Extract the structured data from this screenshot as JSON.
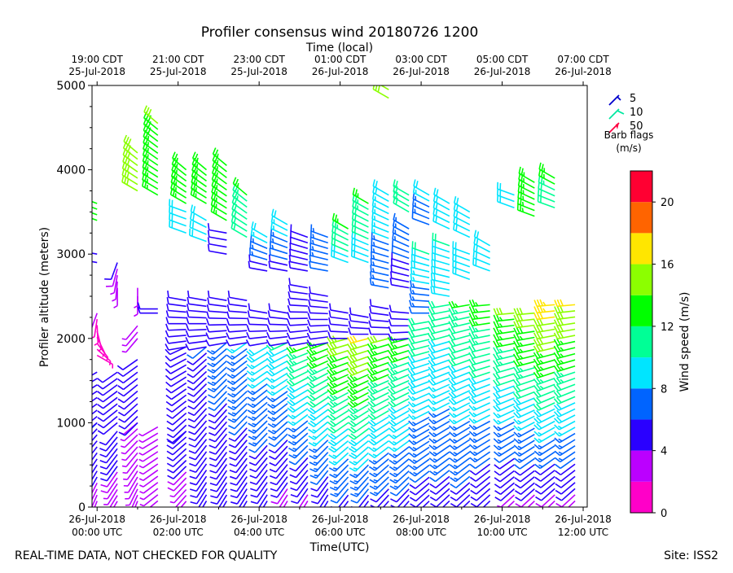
{
  "chart_data": {
    "type": "wind-barb",
    "title": "Profiler consensus wind 20180726 1200",
    "top_axis_title": "Time (local)",
    "xlabel": "Time(UTC)",
    "ylabel": "Profiler altitude (meters)",
    "ylim": [
      0,
      5000
    ],
    "y_ticks": [
      0,
      1000,
      2000,
      3000,
      4000,
      5000
    ],
    "xlim_hours": [
      -0.125,
      12.1
    ],
    "bottom_ticks": [
      {
        "hour": 0,
        "line1": "26-Jul-2018",
        "line2": "00:00 UTC"
      },
      {
        "hour": 2,
        "line1": "26-Jul-2018",
        "line2": "02:00 UTC"
      },
      {
        "hour": 4,
        "line1": "26-Jul-2018",
        "line2": "04:00 UTC"
      },
      {
        "hour": 6,
        "line1": "26-Jul-2018",
        "line2": "06:00 UTC"
      },
      {
        "hour": 8,
        "line1": "26-Jul-2018",
        "line2": "08:00 UTC"
      },
      {
        "hour": 10,
        "line1": "26-Jul-2018",
        "line2": "10:00 UTC"
      },
      {
        "hour": 12,
        "line1": "26-Jul-2018",
        "line2": "12:00 UTC"
      }
    ],
    "top_ticks": [
      {
        "hour": 0,
        "line1": "19:00 CDT",
        "line2": "25-Jul-2018"
      },
      {
        "hour": 2,
        "line1": "21:00 CDT",
        "line2": "25-Jul-2018"
      },
      {
        "hour": 4,
        "line1": "23:00 CDT",
        "line2": "25-Jul-2018"
      },
      {
        "hour": 6,
        "line1": "01:00 CDT",
        "line2": "26-Jul-2018"
      },
      {
        "hour": 8,
        "line1": "03:00 CDT",
        "line2": "26-Jul-2018"
      },
      {
        "hour": 10,
        "line1": "05:00 CDT",
        "line2": "26-Jul-2018"
      },
      {
        "hour": 12,
        "line1": "07:00 CDT",
        "line2": "26-Jul-2018"
      }
    ],
    "legend": {
      "entries": [
        {
          "label": "5",
          "color": "#0000cc"
        },
        {
          "label": "10",
          "color": "#00e8a0"
        },
        {
          "label": "50",
          "color": "#ff0040"
        }
      ],
      "title_line1": "Barb flags",
      "title_line2": "(m/s)"
    },
    "colorbar": {
      "label": "Wind speed (m/s)",
      "min": 0,
      "max": 22,
      "ticks": [
        0,
        4,
        8,
        12,
        16,
        20
      ],
      "bands": [
        {
          "from": 0,
          "to": 2,
          "color": "#ff00c8"
        },
        {
          "from": 2,
          "to": 4,
          "color": "#bb00ff"
        },
        {
          "from": 4,
          "to": 6,
          "color": "#2a00ff"
        },
        {
          "from": 6,
          "to": 8,
          "color": "#0064ff"
        },
        {
          "from": 8,
          "to": 10,
          "color": "#00e5ff"
        },
        {
          "from": 10,
          "to": 12,
          "color": "#00ff96"
        },
        {
          "from": 12,
          "to": 14,
          "color": "#00ff00"
        },
        {
          "from": 14,
          "to": 16,
          "color": "#8cff00"
        },
        {
          "from": 16,
          "to": 18,
          "color": "#ffe600"
        },
        {
          "from": 18,
          "to": 20,
          "color": "#ff6400"
        },
        {
          "from": 20,
          "to": 22,
          "color": "#ff0032"
        }
      ]
    },
    "barb_columns": [
      {
        "hour": 0.0,
        "segments": [
          {
            "from": 0,
            "to": 1000,
            "speed_from": 3,
            "speed_to": 6,
            "dir_from": 200,
            "dir_to": 225
          },
          {
            "from": 1000,
            "to": 1600,
            "speed_from": 5,
            "speed_to": 5,
            "dir_from": 230,
            "dir_to": 240
          },
          {
            "from": 1800,
            "to": 2300,
            "speed_from": 1.5,
            "speed_to": 2,
            "dir_from": 120,
            "dir_to": 200
          },
          {
            "from": 2900,
            "to": 3000,
            "speed_from": 5,
            "speed_to": 5,
            "dir_from": 280,
            "dir_to": 280
          },
          {
            "from": 3400,
            "to": 3600,
            "speed_from": 13,
            "speed_to": 13,
            "dir_from": 290,
            "dir_to": 290
          }
        ]
      },
      {
        "hour": 0.5,
        "segments": [
          {
            "from": 0,
            "to": 900,
            "speed_from": 3,
            "speed_to": 5,
            "dir_from": 210,
            "dir_to": 220
          },
          {
            "from": 1000,
            "to": 1600,
            "speed_from": 5,
            "speed_to": 5,
            "dir_from": 230,
            "dir_to": 235
          },
          {
            "from": 2600,
            "to": 2900,
            "speed_from": 3,
            "speed_to": 4,
            "dir_from": 180,
            "dir_to": 200
          }
        ]
      },
      {
        "hour": 1.0,
        "segments": [
          {
            "from": 0,
            "to": 1000,
            "speed_from": 3,
            "speed_to": 3,
            "dir_from": 200,
            "dir_to": 230
          },
          {
            "from": 1000,
            "to": 1750,
            "speed_from": 5,
            "speed_to": 5,
            "dir_from": 225,
            "dir_to": 235
          },
          {
            "from": 2000,
            "to": 2150,
            "speed_from": 3,
            "speed_to": 3,
            "dir_from": 220,
            "dir_to": 220
          },
          {
            "from": 2500,
            "to": 2600,
            "speed_from": 3,
            "speed_to": 3,
            "dir_from": 180,
            "dir_to": 180
          },
          {
            "from": 3750,
            "to": 4200,
            "speed_from": 14,
            "speed_to": 15,
            "dir_from": 300,
            "dir_to": 310
          }
        ]
      },
      {
        "hour": 1.5,
        "segments": [
          {
            "from": 0,
            "to": 950,
            "speed_from": 3,
            "speed_to": 3,
            "dir_from": 230,
            "dir_to": 240
          },
          {
            "from": 2300,
            "to": 2350,
            "speed_from": 4,
            "speed_to": 4,
            "dir_from": 270,
            "dir_to": 270
          },
          {
            "from": 3700,
            "to": 4550,
            "speed_from": 13,
            "speed_to": 14,
            "dir_from": 300,
            "dir_to": 310
          }
        ]
      },
      {
        "hour": 2.2,
        "segments": [
          {
            "from": 0,
            "to": 900,
            "speed_from": 3,
            "speed_to": 5,
            "dir_from": 220,
            "dir_to": 230
          },
          {
            "from": 900,
            "to": 1900,
            "speed_from": 5,
            "speed_to": 5,
            "dir_from": 225,
            "dir_to": 245
          },
          {
            "from": 1900,
            "to": 2450,
            "speed_from": 5,
            "speed_to": 5,
            "dir_from": 260,
            "dir_to": 280
          },
          {
            "from": 3250,
            "to": 3500,
            "speed_from": 9,
            "speed_to": 9,
            "dir_from": 290,
            "dir_to": 290
          },
          {
            "from": 3600,
            "to": 4000,
            "speed_from": 13,
            "speed_to": 13,
            "dir_from": 300,
            "dir_to": 310
          }
        ]
      },
      {
        "hour": 2.7,
        "segments": [
          {
            "from": 0,
            "to": 1900,
            "speed_from": 4,
            "speed_to": 6,
            "dir_from": 210,
            "dir_to": 230
          },
          {
            "from": 1900,
            "to": 2450,
            "speed_from": 5,
            "speed_to": 5,
            "dir_from": 260,
            "dir_to": 280
          },
          {
            "from": 3150,
            "to": 3400,
            "speed_from": 9,
            "speed_to": 9,
            "dir_from": 290,
            "dir_to": 300
          },
          {
            "from": 3600,
            "to": 4000,
            "speed_from": 12,
            "speed_to": 13,
            "dir_from": 300,
            "dir_to": 310
          }
        ]
      },
      {
        "hour": 3.2,
        "segments": [
          {
            "from": 0,
            "to": 1950,
            "speed_from": 4,
            "speed_to": 7,
            "dir_from": 210,
            "dir_to": 230
          },
          {
            "from": 1950,
            "to": 2450,
            "speed_from": 5,
            "speed_to": 5,
            "dir_from": 260,
            "dir_to": 280
          },
          {
            "from": 3000,
            "to": 3250,
            "speed_from": 5,
            "speed_to": 5,
            "dir_from": 280,
            "dir_to": 280
          },
          {
            "from": 3400,
            "to": 4050,
            "speed_from": 12,
            "speed_to": 13,
            "dir_from": 300,
            "dir_to": 310
          }
        ]
      },
      {
        "hour": 3.7,
        "segments": [
          {
            "from": 0,
            "to": 1950,
            "speed_from": 4,
            "speed_to": 8,
            "dir_from": 210,
            "dir_to": 235
          },
          {
            "from": 1950,
            "to": 2450,
            "speed_from": 5,
            "speed_to": 5,
            "dir_from": 260,
            "dir_to": 280
          },
          {
            "from": 3200,
            "to": 3700,
            "speed_from": 10,
            "speed_to": 12,
            "dir_from": 300,
            "dir_to": 310
          }
        ]
      },
      {
        "hour": 4.2,
        "segments": [
          {
            "from": 0,
            "to": 1900,
            "speed_from": 4,
            "speed_to": 9,
            "dir_from": 210,
            "dir_to": 240
          },
          {
            "from": 1950,
            "to": 2300,
            "speed_from": 5,
            "speed_to": 5,
            "dir_from": 260,
            "dir_to": 280
          },
          {
            "from": 2800,
            "to": 3200,
            "speed_from": 5,
            "speed_to": 9,
            "dir_from": 280,
            "dir_to": 300
          }
        ]
      },
      {
        "hour": 4.7,
        "segments": [
          {
            "from": 0,
            "to": 1950,
            "speed_from": 3,
            "speed_to": 10,
            "dir_from": 210,
            "dir_to": 245
          },
          {
            "from": 1950,
            "to": 2300,
            "speed_from": 5,
            "speed_to": 5,
            "dir_from": 260,
            "dir_to": 280
          },
          {
            "from": 2800,
            "to": 3350,
            "speed_from": 5,
            "speed_to": 9,
            "dir_from": 280,
            "dir_to": 300
          }
        ]
      },
      {
        "hour": 5.2,
        "segments": [
          {
            "from": 0,
            "to": 1900,
            "speed_from": 3,
            "speed_to": 12,
            "dir_from": 210,
            "dir_to": 250
          },
          {
            "from": 1950,
            "to": 2600,
            "speed_from": 5,
            "speed_to": 5,
            "dir_from": 260,
            "dir_to": 280
          },
          {
            "from": 2800,
            "to": 3200,
            "speed_from": 5,
            "speed_to": 5,
            "dir_from": 280,
            "dir_to": 290
          }
        ]
      },
      {
        "hour": 5.7,
        "segments": [
          {
            "from": 0,
            "to": 1950,
            "speed_from": 4,
            "speed_to": 13,
            "dir_from": 210,
            "dir_to": 250
          },
          {
            "from": 1950,
            "to": 2500,
            "speed_from": 5,
            "speed_to": 5,
            "dir_from": 260,
            "dir_to": 280
          },
          {
            "from": 2800,
            "to": 3200,
            "speed_from": 6,
            "speed_to": 7,
            "dir_from": 280,
            "dir_to": 290
          }
        ]
      },
      {
        "hour": 6.2,
        "segments": [
          {
            "from": 0,
            "to": 2000,
            "speed_from": 5,
            "speed_to": 15,
            "dir_from": 215,
            "dir_to": 255
          },
          {
            "from": 2000,
            "to": 2300,
            "speed_from": 5,
            "speed_to": 5,
            "dir_from": 270,
            "dir_to": 280
          },
          {
            "from": 2900,
            "to": 3300,
            "speed_from": 9,
            "speed_to": 12,
            "dir_from": 290,
            "dir_to": 300
          }
        ]
      },
      {
        "hour": 6.7,
        "segments": [
          {
            "from": 0,
            "to": 2000,
            "speed_from": 5,
            "speed_to": 16,
            "dir_from": 215,
            "dir_to": 255
          },
          {
            "from": 2050,
            "to": 2250,
            "speed_from": 5,
            "speed_to": 5,
            "dir_from": 270,
            "dir_to": 280
          },
          {
            "from": 2900,
            "to": 3600,
            "speed_from": 9,
            "speed_to": 12,
            "dir_from": 290,
            "dir_to": 300
          }
        ]
      },
      {
        "hour": 7.2,
        "segments": [
          {
            "from": 0,
            "to": 2000,
            "speed_from": 5,
            "speed_to": 14,
            "dir_from": 220,
            "dir_to": 255
          },
          {
            "from": 2050,
            "to": 2350,
            "speed_from": 5,
            "speed_to": 5,
            "dir_from": 270,
            "dir_to": 280
          },
          {
            "from": 2600,
            "to": 3700,
            "speed_from": 7,
            "speed_to": 9,
            "dir_from": 280,
            "dir_to": 300
          },
          {
            "from": 4850,
            "to": 4950,
            "speed_from": 15,
            "speed_to": 15,
            "dir_from": 300,
            "dir_to": 300
          }
        ]
      },
      {
        "hour": 7.7,
        "segments": [
          {
            "from": 0,
            "to": 2000,
            "speed_from": 5,
            "speed_to": 13,
            "dir_from": 220,
            "dir_to": 255
          },
          {
            "from": 2000,
            "to": 2300,
            "speed_from": 5,
            "speed_to": 5,
            "dir_from": 265,
            "dir_to": 275
          },
          {
            "from": 2600,
            "to": 3300,
            "speed_from": 5,
            "speed_to": 7,
            "dir_from": 280,
            "dir_to": 300
          },
          {
            "from": 3500,
            "to": 3700,
            "speed_from": 10,
            "speed_to": 10,
            "dir_from": 300,
            "dir_to": 300
          }
        ]
      },
      {
        "hour": 8.2,
        "segments": [
          {
            "from": 0,
            "to": 2200,
            "speed_from": 5,
            "speed_to": 11,
            "dir_from": 225,
            "dir_to": 260
          },
          {
            "from": 2300,
            "to": 3000,
            "speed_from": 6,
            "speed_to": 10,
            "dir_from": 270,
            "dir_to": 290
          },
          {
            "from": 3350,
            "to": 3700,
            "speed_from": 6,
            "speed_to": 9,
            "dir_from": 290,
            "dir_to": 300
          }
        ]
      },
      {
        "hour": 8.7,
        "segments": [
          {
            "from": 0,
            "to": 2400,
            "speed_from": 5,
            "speed_to": 11,
            "dir_from": 225,
            "dir_to": 260
          },
          {
            "from": 2500,
            "to": 3100,
            "speed_from": 9,
            "speed_to": 10,
            "dir_from": 280,
            "dir_to": 290
          },
          {
            "from": 3300,
            "to": 3600,
            "speed_from": 9,
            "speed_to": 9,
            "dir_from": 295,
            "dir_to": 300
          }
        ]
      },
      {
        "hour": 9.2,
        "segments": [
          {
            "from": 0,
            "to": 2400,
            "speed_from": 5,
            "speed_to": 12,
            "dir_from": 225,
            "dir_to": 260
          },
          {
            "from": 2700,
            "to": 3000,
            "speed_from": 9,
            "speed_to": 9,
            "dir_from": 290,
            "dir_to": 290
          },
          {
            "from": 3200,
            "to": 3500,
            "speed_from": 9,
            "speed_to": 9,
            "dir_from": 295,
            "dir_to": 300
          }
        ]
      },
      {
        "hour": 9.7,
        "segments": [
          {
            "from": 0,
            "to": 2400,
            "speed_from": 4,
            "speed_to": 13,
            "dir_from": 225,
            "dir_to": 265
          },
          {
            "from": 2800,
            "to": 3100,
            "speed_from": 9,
            "speed_to": 9,
            "dir_from": 290,
            "dir_to": 300
          }
        ]
      },
      {
        "hour": 10.3,
        "segments": [
          {
            "from": 0,
            "to": 2300,
            "speed_from": 3,
            "speed_to": 14,
            "dir_from": 225,
            "dir_to": 265
          },
          {
            "from": 3550,
            "to": 3700,
            "speed_from": 9,
            "speed_to": 9,
            "dir_from": 290,
            "dir_to": 290
          }
        ]
      },
      {
        "hour": 10.8,
        "segments": [
          {
            "from": 0,
            "to": 2300,
            "speed_from": 3,
            "speed_to": 15,
            "dir_from": 225,
            "dir_to": 265
          },
          {
            "from": 3450,
            "to": 3850,
            "speed_from": 12,
            "speed_to": 12,
            "dir_from": 290,
            "dir_to": 300
          }
        ]
      },
      {
        "hour": 11.3,
        "segments": [
          {
            "from": 0,
            "to": 2400,
            "speed_from": 3,
            "speed_to": 17,
            "dir_from": 225,
            "dir_to": 265
          },
          {
            "from": 3550,
            "to": 3900,
            "speed_from": 10,
            "speed_to": 13,
            "dir_from": 290,
            "dir_to": 300
          }
        ]
      },
      {
        "hour": 11.8,
        "segments": [
          {
            "from": 0,
            "to": 2400,
            "speed_from": 3,
            "speed_to": 16,
            "dir_from": 225,
            "dir_to": 265
          }
        ]
      }
    ]
  },
  "footer": {
    "disclaimer": "REAL-TIME DATA, NOT CHECKED FOR QUALITY",
    "site": "Site: ISS2"
  }
}
